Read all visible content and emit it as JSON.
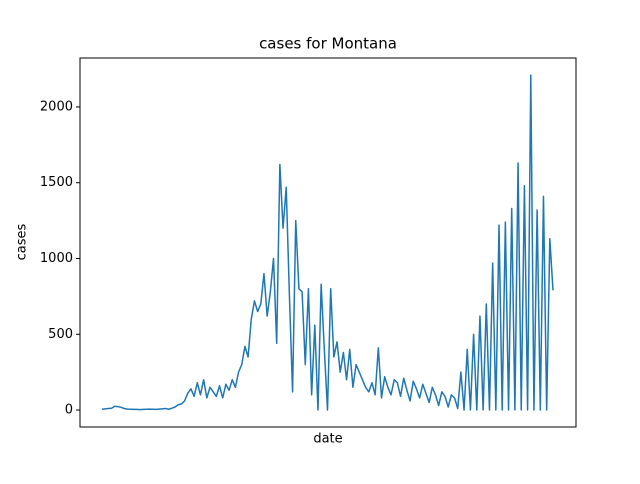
{
  "chart_data": {
    "type": "line",
    "title": "cases for Montana",
    "xlabel": "date",
    "ylabel": "cases",
    "series": [
      {
        "name": "cases",
        "color": "#1f77b4",
        "values": [
          5,
          8,
          10,
          12,
          25,
          22,
          18,
          10,
          6,
          5,
          4,
          4,
          3,
          4,
          5,
          6,
          5,
          4,
          6,
          8,
          10,
          5,
          12,
          20,
          35,
          40,
          60,
          110,
          140,
          90,
          180,
          100,
          200,
          80,
          150,
          120,
          90,
          160,
          80,
          170,
          130,
          200,
          150,
          250,
          300,
          420,
          350,
          600,
          720,
          650,
          700,
          900,
          620,
          780,
          1000,
          440,
          1620,
          1200,
          1470,
          760,
          120,
          1250,
          800,
          780,
          300,
          800,
          100,
          560,
          0,
          830,
          400,
          0,
          800,
          350,
          450,
          250,
          380,
          200,
          400,
          150,
          300,
          250,
          200,
          150,
          120,
          180,
          100,
          410,
          80,
          220,
          150,
          100,
          200,
          180,
          90,
          210,
          130,
          60,
          190,
          140,
          80,
          170,
          110,
          50,
          150,
          100,
          30,
          120,
          90,
          20,
          100,
          80,
          10,
          250,
          0,
          400,
          0,
          500,
          0,
          620,
          0,
          700,
          0,
          970,
          0,
          1220,
          0,
          1240,
          0,
          1330,
          0,
          1630,
          0,
          1480,
          0,
          2210,
          0,
          1320,
          0,
          1410,
          0,
          1130,
          790
        ]
      }
    ],
    "ylim": [
      -112,
      2323
    ],
    "yticks": [
      0,
      500,
      1000,
      1500,
      2000
    ],
    "grid": false
  }
}
